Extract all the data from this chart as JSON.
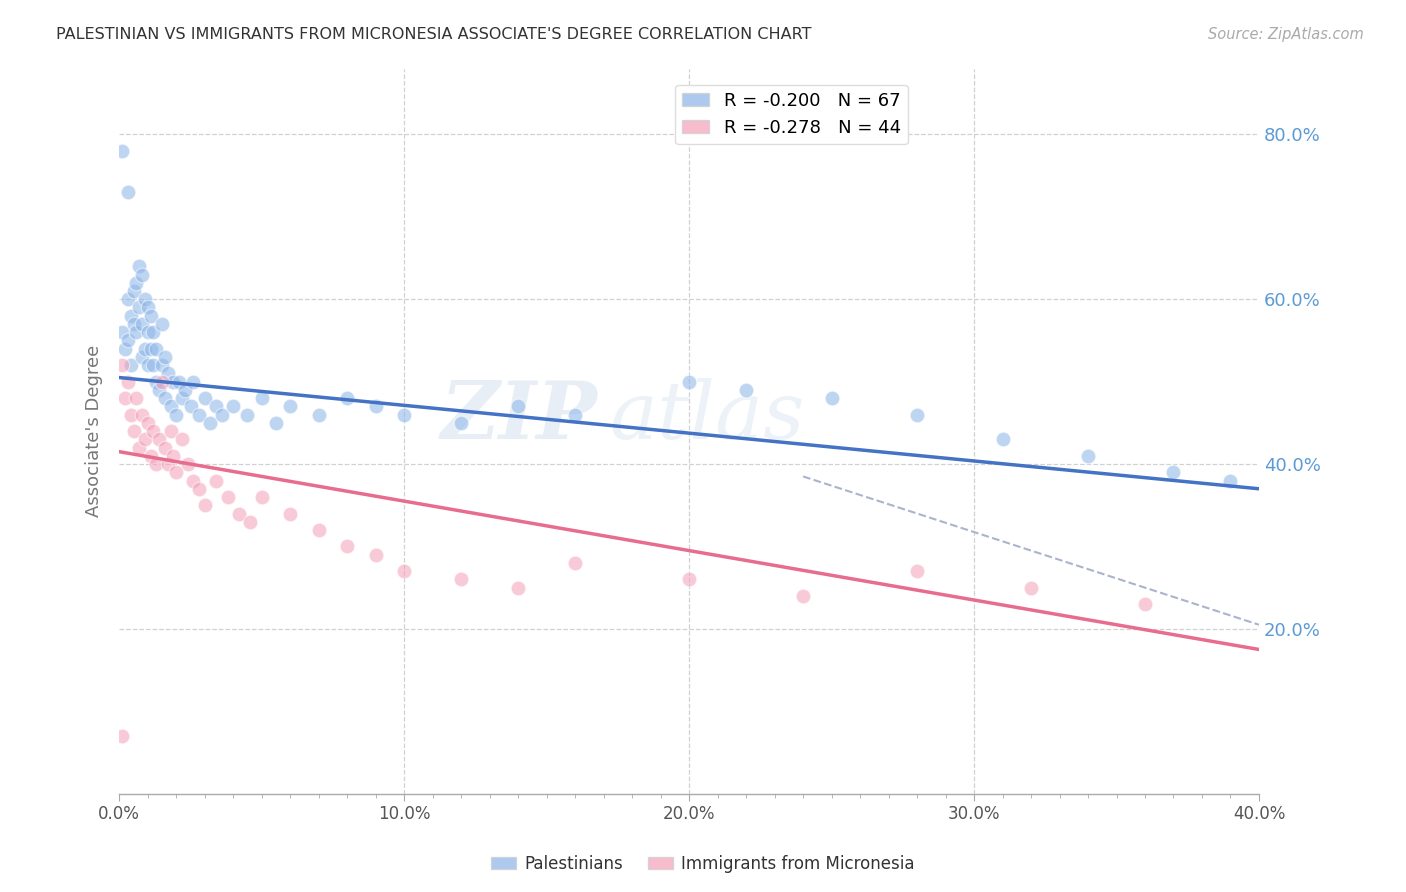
{
  "title": "PALESTINIAN VS IMMIGRANTS FROM MICRONESIA ASSOCIATE'S DEGREE CORRELATION CHART",
  "source": "Source: ZipAtlas.com",
  "ylabel": "Associate's Degree",
  "watermark_zip": "ZIP",
  "watermark_atlas": "atlas",
  "blue_R": "-0.200",
  "blue_N": "67",
  "pink_R": "-0.278",
  "pink_N": "44",
  "blue_scatter_x": [
    0.001,
    0.002,
    0.003,
    0.003,
    0.004,
    0.004,
    0.005,
    0.005,
    0.006,
    0.006,
    0.007,
    0.007,
    0.008,
    0.008,
    0.008,
    0.009,
    0.009,
    0.01,
    0.01,
    0.01,
    0.011,
    0.011,
    0.012,
    0.012,
    0.013,
    0.013,
    0.014,
    0.015,
    0.015,
    0.016,
    0.016,
    0.017,
    0.018,
    0.019,
    0.02,
    0.021,
    0.022,
    0.023,
    0.025,
    0.026,
    0.028,
    0.03,
    0.032,
    0.034,
    0.036,
    0.04,
    0.045,
    0.05,
    0.055,
    0.06,
    0.07,
    0.08,
    0.09,
    0.1,
    0.12,
    0.14,
    0.16,
    0.2,
    0.22,
    0.25,
    0.28,
    0.31,
    0.34,
    0.37,
    0.39,
    0.001,
    0.003
  ],
  "blue_scatter_y": [
    0.56,
    0.54,
    0.6,
    0.55,
    0.52,
    0.58,
    0.61,
    0.57,
    0.56,
    0.62,
    0.64,
    0.59,
    0.53,
    0.57,
    0.63,
    0.54,
    0.6,
    0.52,
    0.56,
    0.59,
    0.54,
    0.58,
    0.52,
    0.56,
    0.5,
    0.54,
    0.49,
    0.52,
    0.57,
    0.48,
    0.53,
    0.51,
    0.47,
    0.5,
    0.46,
    0.5,
    0.48,
    0.49,
    0.47,
    0.5,
    0.46,
    0.48,
    0.45,
    0.47,
    0.46,
    0.47,
    0.46,
    0.48,
    0.45,
    0.47,
    0.46,
    0.48,
    0.47,
    0.46,
    0.45,
    0.47,
    0.46,
    0.5,
    0.49,
    0.48,
    0.46,
    0.43,
    0.41,
    0.39,
    0.38,
    0.78,
    0.73
  ],
  "pink_scatter_x": [
    0.001,
    0.002,
    0.003,
    0.004,
    0.005,
    0.006,
    0.007,
    0.008,
    0.009,
    0.01,
    0.011,
    0.012,
    0.013,
    0.014,
    0.015,
    0.016,
    0.017,
    0.018,
    0.019,
    0.02,
    0.022,
    0.024,
    0.026,
    0.028,
    0.03,
    0.034,
    0.038,
    0.042,
    0.046,
    0.05,
    0.06,
    0.07,
    0.08,
    0.09,
    0.1,
    0.12,
    0.14,
    0.16,
    0.2,
    0.24,
    0.28,
    0.32,
    0.36,
    0.001
  ],
  "pink_scatter_y": [
    0.52,
    0.48,
    0.5,
    0.46,
    0.44,
    0.48,
    0.42,
    0.46,
    0.43,
    0.45,
    0.41,
    0.44,
    0.4,
    0.43,
    0.5,
    0.42,
    0.4,
    0.44,
    0.41,
    0.39,
    0.43,
    0.4,
    0.38,
    0.37,
    0.35,
    0.38,
    0.36,
    0.34,
    0.33,
    0.36,
    0.34,
    0.32,
    0.3,
    0.29,
    0.27,
    0.26,
    0.25,
    0.28,
    0.26,
    0.24,
    0.27,
    0.25,
    0.23,
    0.07
  ],
  "blue_line_x": [
    0.0,
    0.4
  ],
  "blue_line_y": [
    0.505,
    0.37
  ],
  "blue_line_color": "#4472c4",
  "pink_line_x": [
    0.0,
    0.4
  ],
  "pink_line_y": [
    0.415,
    0.175
  ],
  "pink_line_color": "#e86c8d",
  "dashed_line_x": [
    0.24,
    0.4
  ],
  "dashed_line_y": [
    0.385,
    0.205
  ],
  "dashed_line_color": "#aab4cc",
  "blue_color": "#8ab4e8",
  "pink_color": "#f4a0b8",
  "xmin": 0.0,
  "xmax": 0.4,
  "ymin": 0.0,
  "ymax": 0.88,
  "right_ytick_vals": [
    0.2,
    0.4,
    0.6,
    0.8
  ],
  "right_ytick_labels": [
    "20.0%",
    "40.0%",
    "60.0%",
    "80.0%"
  ],
  "xtick_vals": [
    0.0,
    0.1,
    0.2,
    0.3,
    0.4
  ],
  "xtick_labels": [
    "0.0%",
    "10.0%",
    "20.0%",
    "30.0%",
    "40.0%"
  ],
  "grid_color": "#cccccc",
  "bg_color": "#ffffff",
  "title_color": "#333333",
  "right_axis_color": "#5b9bd5",
  "source_color": "#aaaaaa",
  "bottom_label_color": "#333333"
}
